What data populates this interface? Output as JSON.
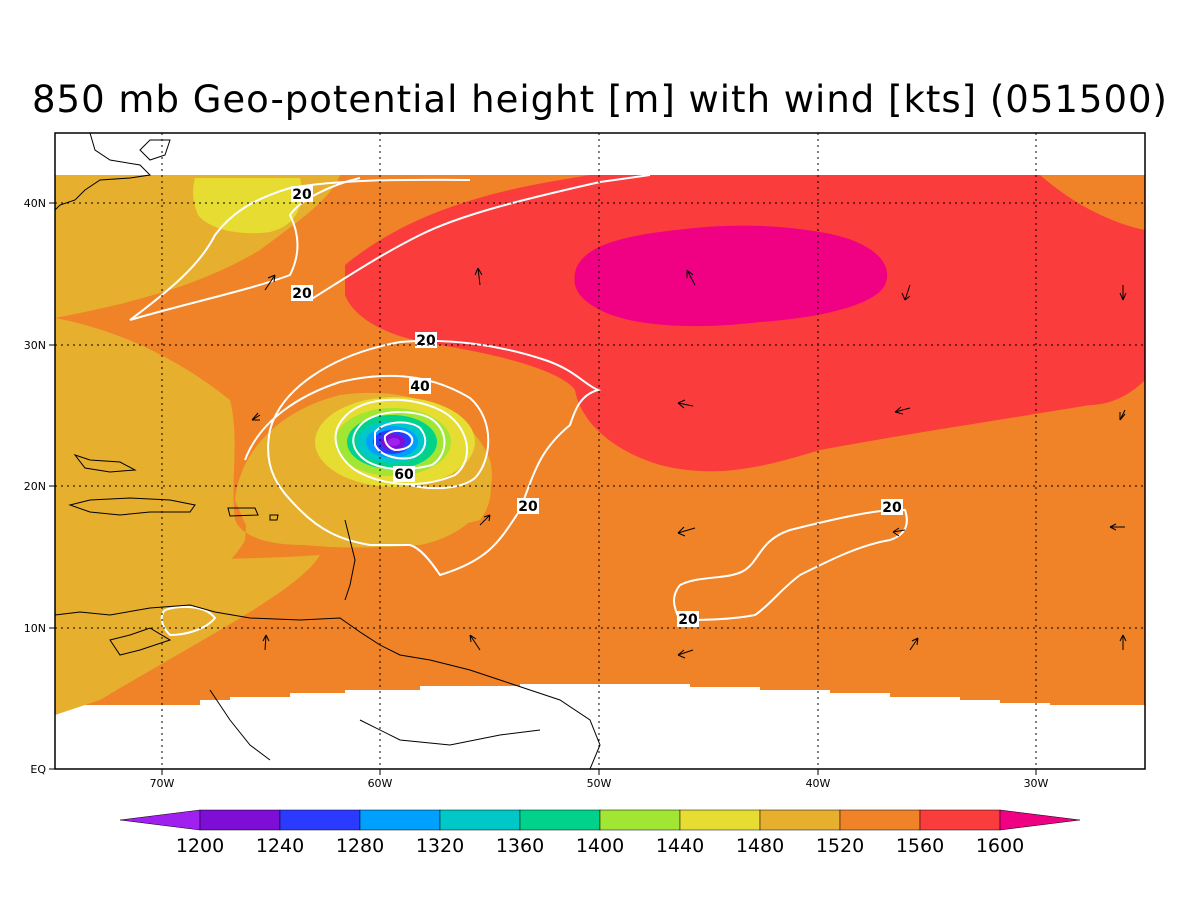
{
  "title": "850 mb Geo-potential height [m] with wind [kts] (051500)",
  "map": {
    "lon_ticks": [
      "70W",
      "60W",
      "50W",
      "40W",
      "30W"
    ],
    "lat_ticks": [
      "40N",
      "30N",
      "20N",
      "10N",
      "EQ"
    ],
    "contour_labels": [
      "20",
      "20",
      "20",
      "40",
      "60",
      "20",
      "20",
      "20"
    ]
  },
  "colorbar": {
    "labels": [
      "1200",
      "1240",
      "1280",
      "1320",
      "1360",
      "1400",
      "1440",
      "1480",
      "1520",
      "1560",
      "1600"
    ],
    "colors": [
      "#a020f0",
      "#7e0ed6",
      "#2a3bff",
      "#00a0ff",
      "#00c8c8",
      "#00d28c",
      "#a0e632",
      "#e6dc32",
      "#e6af2d",
      "#f08228",
      "#fa3c3c",
      "#f00082"
    ]
  },
  "colors": {
    "c1480": "#e6dc32",
    "c1520": "#e6af2d",
    "c1560": "#f08228",
    "c1600": "#fa3c3c",
    "c1640": "#f00082",
    "contour": "#ffffff",
    "coast": "#000000"
  }
}
